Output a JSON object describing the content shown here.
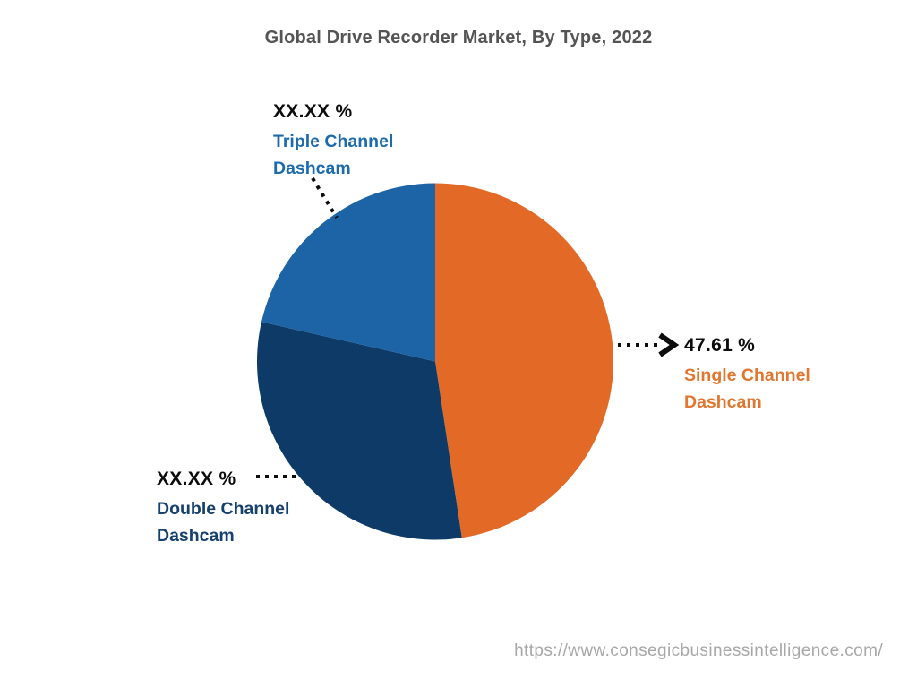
{
  "title": "Global Drive Recorder Market, By Type, 2022",
  "footer": {
    "url": "https://www.consegicbusinessintelligence.com/"
  },
  "colors": {
    "title_text": "#545454",
    "percent_text": "#0d0d0d",
    "leader_lines": "#0d0d0d",
    "footer_text": "#a8a8a8",
    "background": "#ffffff"
  },
  "chart_data": {
    "type": "pie",
    "title": "Global Drive Recorder Market, By Type, 2022",
    "start_angle_deg": 0,
    "direction": "clockwise",
    "legend_position": "none",
    "slices": [
      {
        "name": "Single Channel Dashcam",
        "label_lines": [
          "Single Channel",
          "Dashcam"
        ],
        "displayed_value": "47.61 %",
        "percent": 47.61,
        "color": "#E36A26",
        "label_color": "#E0762F",
        "label_position": "right"
      },
      {
        "name": "Double Channel Dashcam",
        "label_lines": [
          "Double Channel",
          "Dashcam"
        ],
        "displayed_value": "XX.XX %",
        "percent": 30.96,
        "color": "#0D3A66",
        "label_color": "#16406E",
        "label_position": "bottom-left"
      },
      {
        "name": "Triple Channel Dashcam",
        "label_lines": [
          "Triple Channel",
          "Dashcam"
        ],
        "displayed_value": "XX.XX %",
        "percent": 21.43,
        "color": "#1C64A5",
        "label_color": "#1C6BAD",
        "label_position": "top-left"
      }
    ]
  }
}
